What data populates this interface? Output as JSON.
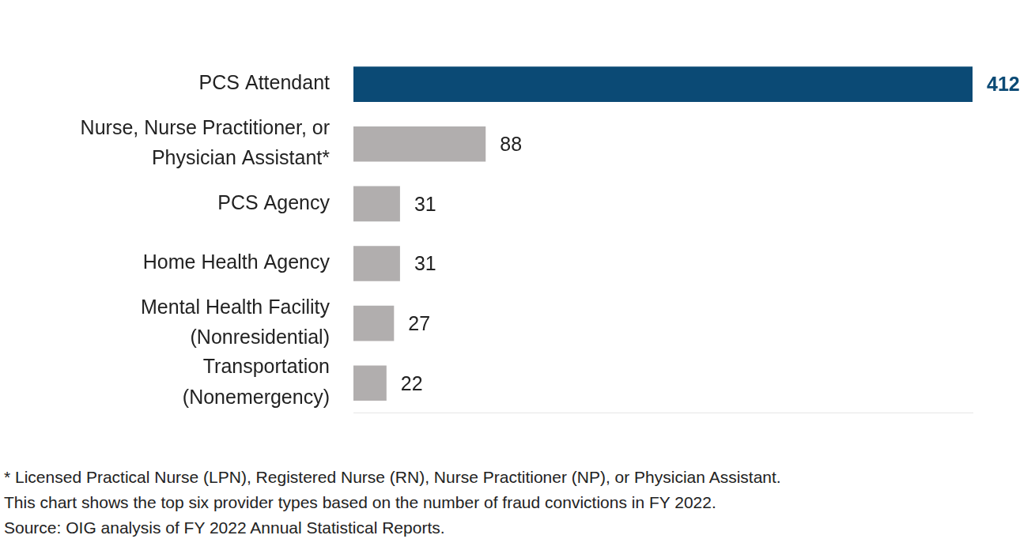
{
  "chart_data": {
    "type": "bar",
    "orientation": "horizontal",
    "categories": [
      "PCS Attendant",
      "Nurse, Nurse Practitioner, or\nPhysician Assistant*",
      "PCS Agency",
      "Home Health Agency",
      "Mental Health Facility\n(Nonresidential)",
      "Transportation\n(Nonemergency)"
    ],
    "values": [
      412,
      88,
      31,
      31,
      27,
      22
    ],
    "colors": [
      "#0b4a75",
      "#b1aeae",
      "#b1aeae",
      "#b1aeae",
      "#b1aeae",
      "#b1aeae"
    ],
    "xlim": [
      0,
      412
    ],
    "grid": false,
    "data_labels": true,
    "tick_labels": "y",
    "annotations": [
      "* Licensed Practical Nurse (LPN), Registered Nurse (RN), Nurse Practitioner (NP), or Physician Assistant.",
      "This chart shows the top six provider types based on the number of fraud convictions in FY 2022.",
      "Source: OIG analysis of FY 2022 Annual Statistical Reports."
    ]
  }
}
